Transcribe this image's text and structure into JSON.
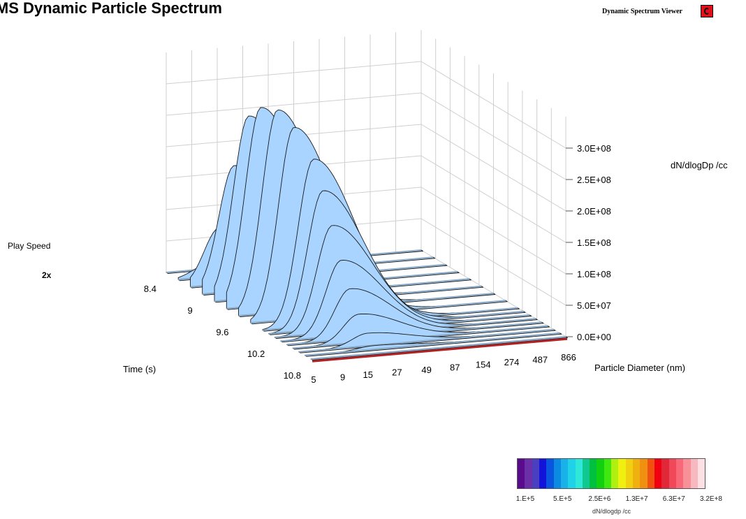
{
  "header": {
    "title": "DMS Dynamic Particle Spectrum",
    "app_name": "Dynamic Spectrum Viewer",
    "logo_icon": "red-c-logo-icon"
  },
  "play_speed": {
    "label": "Play Speed",
    "value": "2x"
  },
  "colorbar": {
    "title": "dN/dlogdp  /cc",
    "tick_labels": [
      "1.E+5",
      "5.E+5",
      "2.5E+6",
      "1.3E+7",
      "6.3E+7",
      "3.2E+8"
    ],
    "colors": [
      "#5a0a8c",
      "#6b2fa8",
      "#4a3fc0",
      "#1212d8",
      "#0a55e0",
      "#0a8ae0",
      "#1ab0e8",
      "#20d2e8",
      "#30e8d8",
      "#10c890",
      "#00c040",
      "#10d010",
      "#40e810",
      "#b0f010",
      "#f0f010",
      "#f0d010",
      "#f0b010",
      "#f09010",
      "#f05010",
      "#f00010",
      "#e02838",
      "#f04858",
      "#f86878",
      "#f89098",
      "#f8b8c0",
      "#fce0e4"
    ]
  },
  "chart_data": {
    "type": "surface3d",
    "title": "DMS Dynamic Particle Spectrum",
    "x_label": "Particle Diameter  (nm)",
    "y_label": "Time (s)",
    "z_label": "dN/dlogDp /cc",
    "x_ticks": [
      "5",
      "9",
      "15",
      "27",
      "49",
      "87",
      "154",
      "274",
      "487",
      "866"
    ],
    "y_ticks": [
      "8.4",
      "9",
      "9.6",
      "10.2",
      "10.8"
    ],
    "z_ticks": [
      "0.0E+00",
      "5.0E+07",
      "1.0E+08",
      "1.5E+08",
      "2.0E+08",
      "2.5E+08",
      "3.0E+08"
    ],
    "z_range": [
      0,
      300000000
    ],
    "time_range": [
      8.4,
      10.8
    ],
    "surface_color": "#a8d4ff",
    "floor_color": "#8aa8c4",
    "series": [
      {
        "time": 8.4,
        "peak": 0,
        "peak_diameter": 9
      },
      {
        "time": 8.6,
        "peak": 20000000,
        "peak_diameter": 9
      },
      {
        "time": 8.8,
        "peak": 90000000,
        "peak_diameter": 9
      },
      {
        "time": 9.0,
        "peak": 200000000,
        "peak_diameter": 9.5
      },
      {
        "time": 9.2,
        "peak": 290000000,
        "peak_diameter": 10
      },
      {
        "time": 9.4,
        "peak": 315000000,
        "peak_diameter": 10
      },
      {
        "time": 9.6,
        "peak": 322000000,
        "peak_diameter": 11
      },
      {
        "time": 9.8,
        "peak": 305000000,
        "peak_diameter": 12
      },
      {
        "time": 10.0,
        "peak": 265000000,
        "peak_diameter": 14
      },
      {
        "time": 10.1,
        "peak": 220000000,
        "peak_diameter": 15
      },
      {
        "time": 10.2,
        "peak": 170000000,
        "peak_diameter": 16
      },
      {
        "time": 10.3,
        "peak": 120000000,
        "peak_diameter": 17
      },
      {
        "time": 10.4,
        "peak": 80000000,
        "peak_diameter": 18
      },
      {
        "time": 10.5,
        "peak": 45000000,
        "peak_diameter": 19
      },
      {
        "time": 10.6,
        "peak": 20000000,
        "peak_diameter": 20
      },
      {
        "time": 10.7,
        "peak": 6000000,
        "peak_diameter": 20
      },
      {
        "time": 10.8,
        "peak": 0,
        "peak_diameter": 20
      }
    ]
  }
}
